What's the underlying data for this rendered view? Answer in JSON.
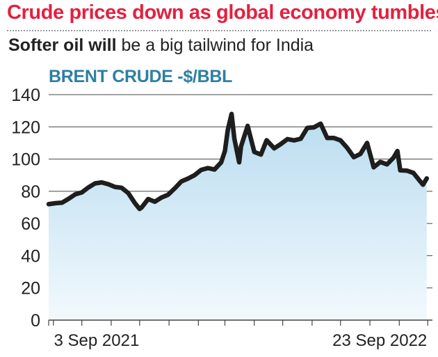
{
  "headline": "Crude prices down as global economy tumbles",
  "subheadline": {
    "bold": "Softer oil will",
    "rest": " be a big tailwind for India"
  },
  "colors": {
    "headline": "#e4203f",
    "series_label": "#2d7fa3",
    "line": "#1e1e1e",
    "area_top": "#b9dcf0",
    "area_bottom": "#f2f9fd",
    "grid": "#444444"
  },
  "chart_data": {
    "type": "area",
    "title": "BRENT CRUDE -$/BBL",
    "ylim": [
      0,
      140
    ],
    "yticks": [
      0,
      20,
      40,
      60,
      80,
      100,
      120,
      140
    ],
    "x_range": [
      "2021-08-27",
      "2022-10-06"
    ],
    "xtick_labels": [
      {
        "date": "2021-09-03",
        "label": "3 Sep 2021"
      },
      {
        "date": "2022-09-23",
        "label": "23 Sep 2022"
      }
    ],
    "grid": true,
    "series": [
      {
        "values": [
          [
            "2021-08-27",
            72
          ],
          [
            "2021-09-03",
            72.6
          ],
          [
            "2021-09-10",
            72.9
          ],
          [
            "2021-09-17",
            75.3
          ],
          [
            "2021-09-24",
            78.1
          ],
          [
            "2021-10-01",
            79.3
          ],
          [
            "2021-10-08",
            82.4
          ],
          [
            "2021-10-15",
            84.9
          ],
          [
            "2021-10-22",
            85.5
          ],
          [
            "2021-10-29",
            84.4
          ],
          [
            "2021-11-05",
            82.7
          ],
          [
            "2021-11-12",
            82.2
          ],
          [
            "2021-11-19",
            78.9
          ],
          [
            "2021-11-26",
            72.7
          ],
          [
            "2021-12-01",
            69
          ],
          [
            "2021-12-03",
            69.9
          ],
          [
            "2021-12-10",
            75.2
          ],
          [
            "2021-12-17",
            73.5
          ],
          [
            "2021-12-24",
            76.1
          ],
          [
            "2021-12-31",
            77.8
          ],
          [
            "2022-01-07",
            81.8
          ],
          [
            "2022-01-14",
            86.1
          ],
          [
            "2022-01-21",
            87.9
          ],
          [
            "2022-01-28",
            90
          ],
          [
            "2022-02-04",
            93.3
          ],
          [
            "2022-02-11",
            94.4
          ],
          [
            "2022-02-18",
            93.5
          ],
          [
            "2022-02-25",
            97.9
          ],
          [
            "2022-03-01",
            105
          ],
          [
            "2022-03-04",
            118
          ],
          [
            "2022-03-08",
            128
          ],
          [
            "2022-03-11",
            112.7
          ],
          [
            "2022-03-16",
            98
          ],
          [
            "2022-03-18",
            107.9
          ],
          [
            "2022-03-25",
            120.6
          ],
          [
            "2022-04-01",
            104.4
          ],
          [
            "2022-04-08",
            102.8
          ],
          [
            "2022-04-14",
            111.7
          ],
          [
            "2022-04-22",
            106.7
          ],
          [
            "2022-04-29",
            109.3
          ],
          [
            "2022-05-06",
            112.4
          ],
          [
            "2022-05-13",
            111.6
          ],
          [
            "2022-05-20",
            112.6
          ],
          [
            "2022-05-27",
            119.4
          ],
          [
            "2022-06-03",
            119.7
          ],
          [
            "2022-06-10",
            122
          ],
          [
            "2022-06-17",
            113.1
          ],
          [
            "2022-06-24",
            113.1
          ],
          [
            "2022-07-01",
            111.6
          ],
          [
            "2022-07-08",
            107
          ],
          [
            "2022-07-15",
            101.2
          ],
          [
            "2022-07-22",
            103.2
          ],
          [
            "2022-07-29",
            110
          ],
          [
            "2022-08-05",
            94.9
          ],
          [
            "2022-08-12",
            98.2
          ],
          [
            "2022-08-19",
            96.7
          ],
          [
            "2022-08-26",
            100.9
          ],
          [
            "2022-08-30",
            105
          ],
          [
            "2022-09-02",
            93
          ],
          [
            "2022-09-09",
            92.8
          ],
          [
            "2022-09-16",
            91.4
          ],
          [
            "2022-09-23",
            86.2
          ],
          [
            "2022-09-26",
            84.1
          ],
          [
            "2022-09-30",
            87.96
          ]
        ]
      }
    ]
  }
}
